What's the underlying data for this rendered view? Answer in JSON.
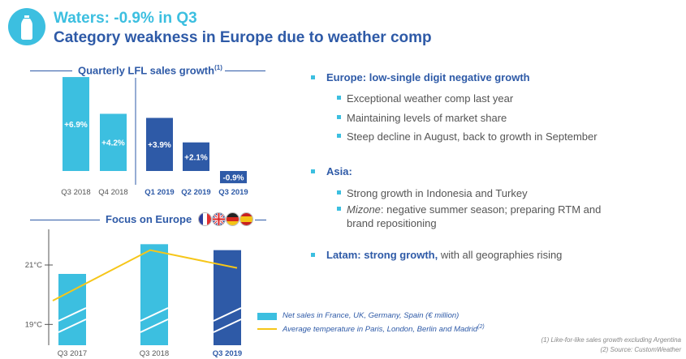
{
  "header": {
    "title": "Waters: -0.9% in Q3",
    "subtitle": "Category weakness in Europe due to weather comp"
  },
  "chart_data": [
    {
      "type": "bar",
      "title": "Quarterly LFL sales growth",
      "title_sup": "(1)",
      "categories": [
        "Q3 2018",
        "Q4 2018",
        "Q1 2019",
        "Q2 2019",
        "Q3 2019"
      ],
      "values": [
        6.9,
        4.2,
        3.9,
        2.1,
        -0.9
      ],
      "labels": [
        "+6.9%",
        "+4.2%",
        "+3.9%",
        "+2.1%",
        "-0.9%"
      ],
      "colors": [
        "#3cbfe0",
        "#3cbfe0",
        "#2e5aa7",
        "#2e5aa7",
        "#2e5aa7"
      ],
      "bold_categories": [
        false,
        false,
        true,
        true,
        true
      ],
      "ylabel": "",
      "xlabel": ""
    },
    {
      "type": "bar+line",
      "title": "Focus on Europe",
      "categories": [
        "Q3 2017",
        "Q3 2018",
        "Q3 2019"
      ],
      "bold_categories": [
        false,
        false,
        true
      ],
      "y_ticks": [
        "21°C",
        "19°C"
      ],
      "series": [
        {
          "name": "Net sales in France, UK, Germany, Spain (€ million)",
          "kind": "bar",
          "values": [
            20.7,
            21.7,
            21.5
          ],
          "colors": [
            "#3cbfe0",
            "#3cbfe0",
            "#2e5aa7"
          ]
        },
        {
          "name": "Average temperature in Paris, London, Berlin and Madrid",
          "name_sup": "(2)",
          "kind": "line",
          "values": [
            19.8,
            21.5,
            20.9
          ],
          "color": "#f6c619"
        }
      ],
      "ylim": [
        18.3,
        22.2
      ]
    }
  ],
  "bullets": {
    "europe": {
      "title": "Europe: low-single digit negative growth",
      "items": [
        "Exceptional weather comp last year",
        "Maintaining levels of market share",
        "Steep decline in August, back to growth in September"
      ]
    },
    "asia": {
      "title": "Asia:",
      "item1": "Strong growth in Indonesia and Turkey",
      "item2_em": "Mizone",
      "item2_rest": ": negative summer season; preparing RTM and brand repositioning"
    },
    "latam": {
      "bold": "Latam: strong growth,",
      "rest": " with all geographies rising"
    }
  },
  "footnotes": {
    "f1": "(1) Like-for-like sales growth excluding Argentina",
    "f2": "(2) Source: CustomWeather"
  },
  "colors": {
    "light": "#3cbfe0",
    "dark": "#2e5aa7",
    "line": "#f6c619"
  },
  "icons": {
    "logo": "water-bottle-icon",
    "flags": [
      "france-flag-icon",
      "uk-flag-icon",
      "germany-flag-icon",
      "spain-flag-icon"
    ]
  }
}
